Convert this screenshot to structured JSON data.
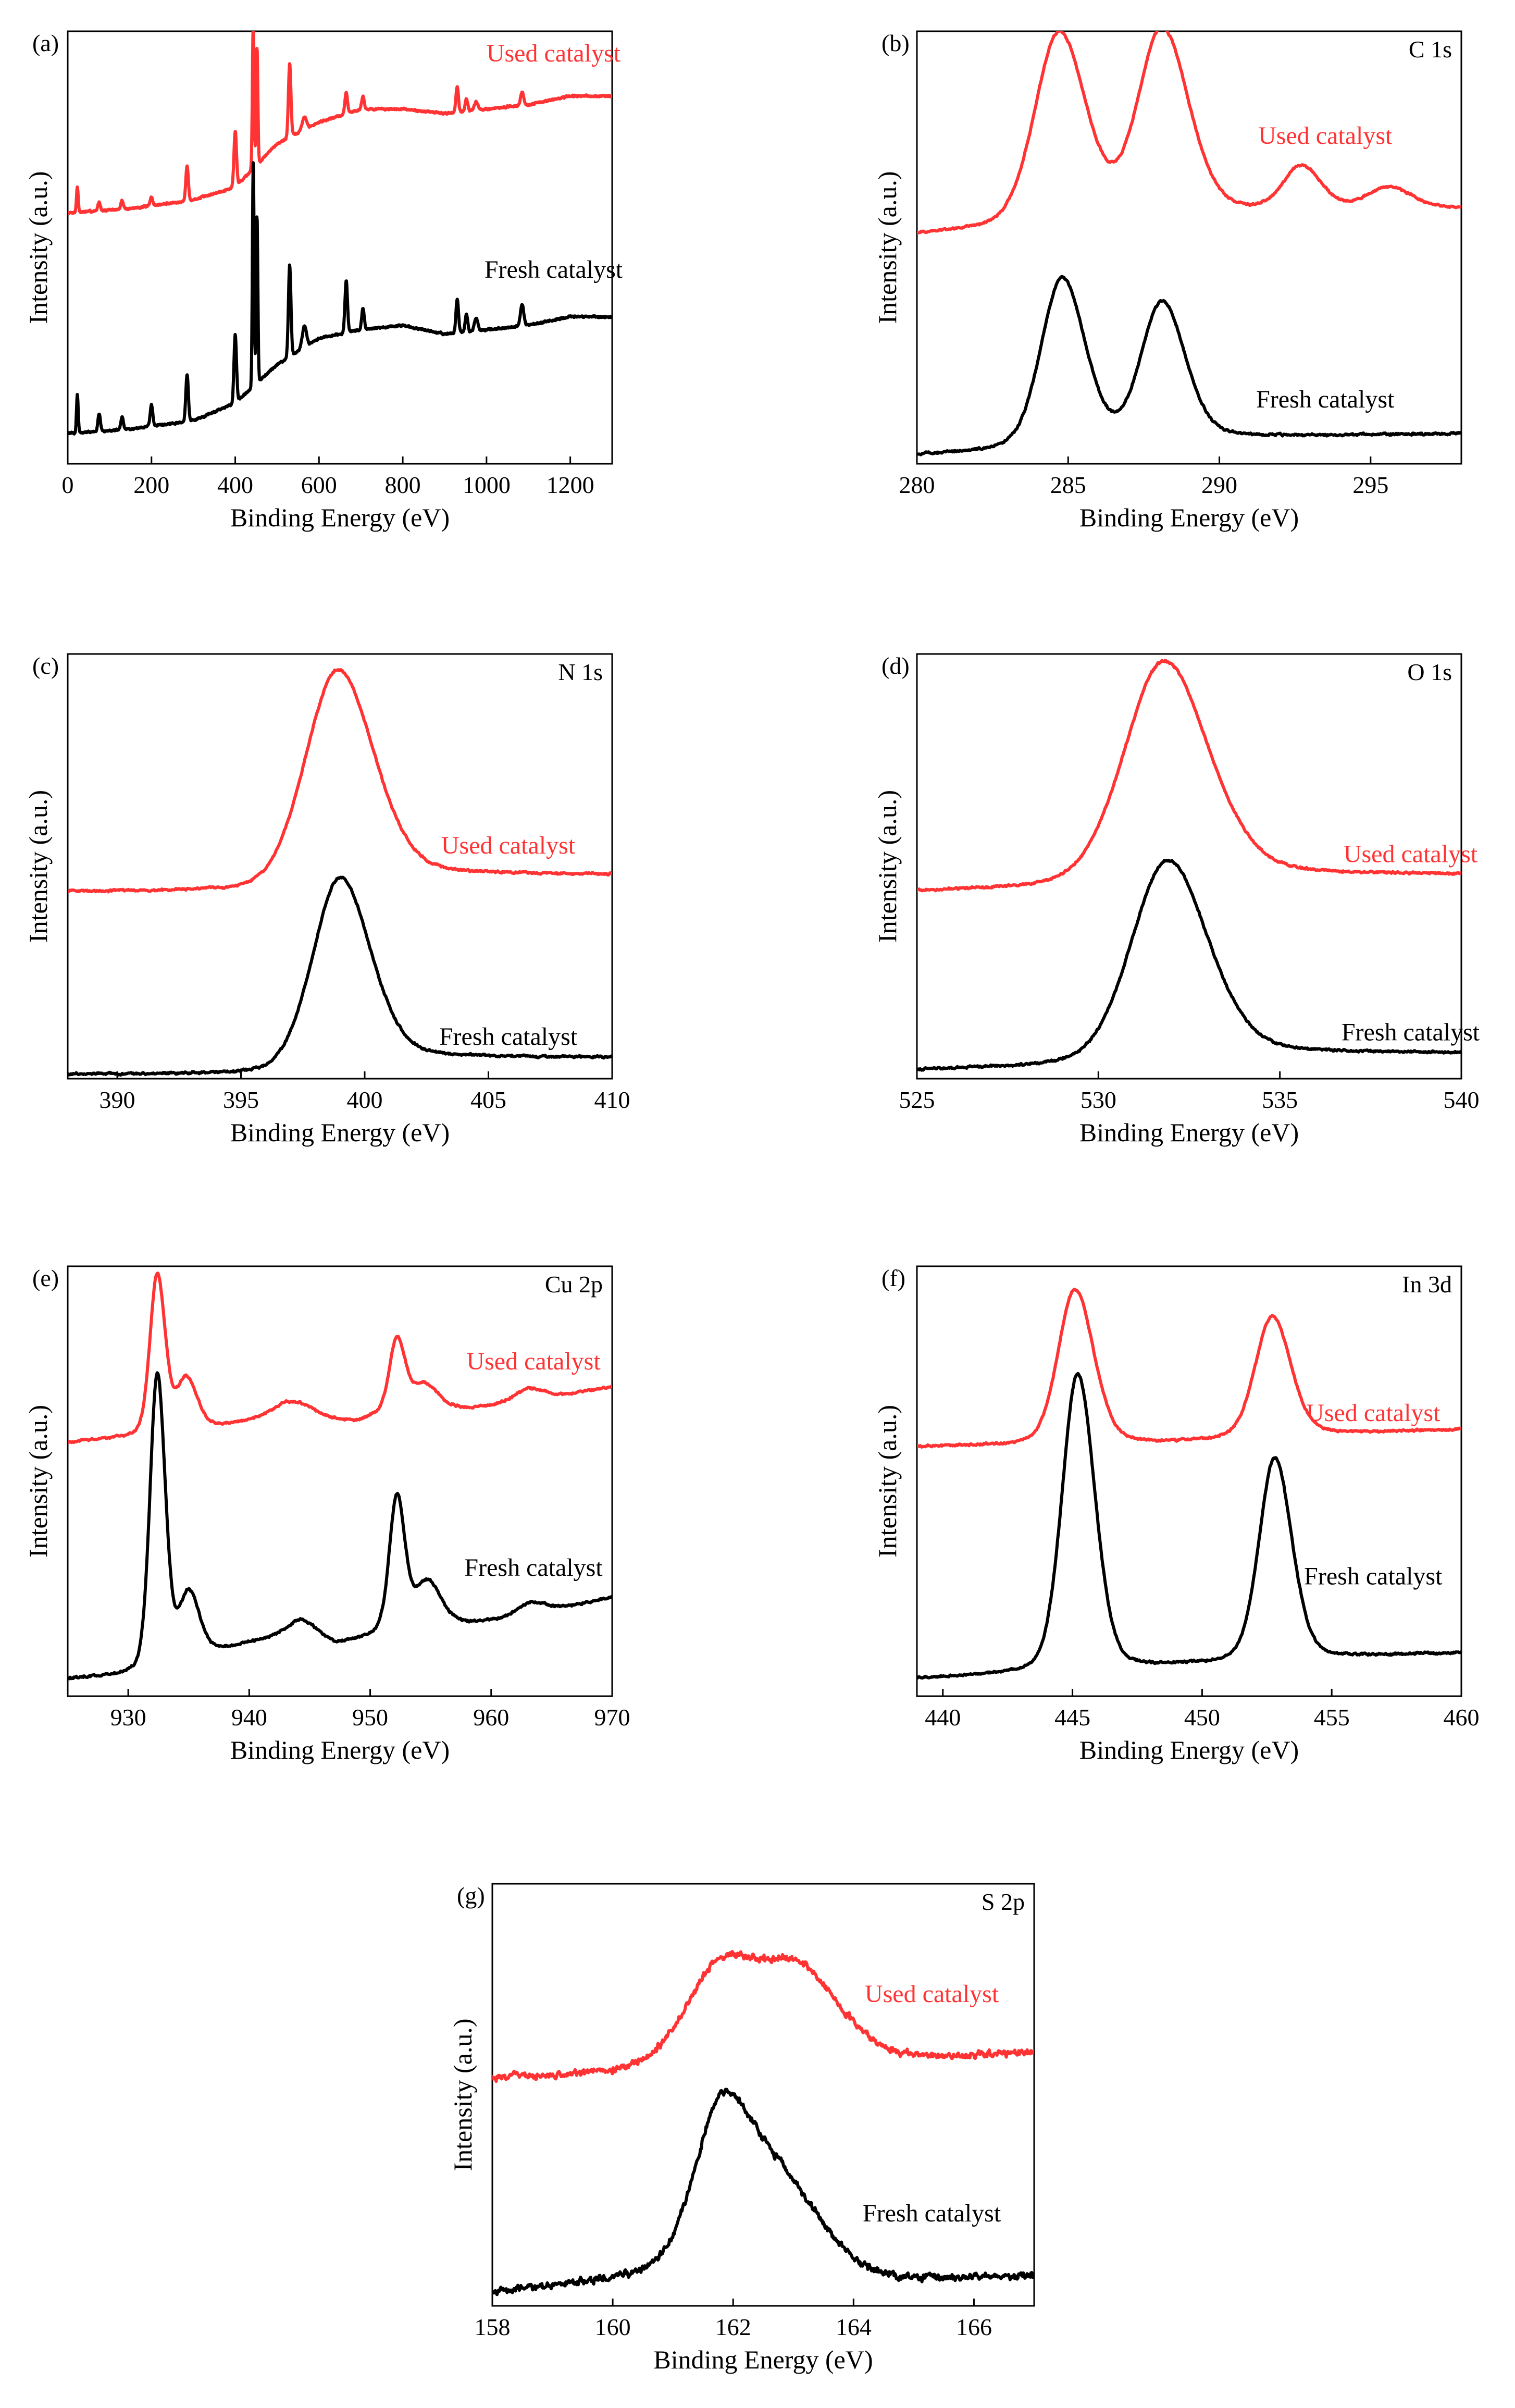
{
  "chart_data": [
    {
      "id": "a",
      "type": "line",
      "panel_label": "(a)",
      "element": "",
      "xlabel": "Binding Energy (eV)",
      "ylabel": "Intensity (a.u.)",
      "xlim": [
        0,
        1300
      ],
      "xticks": [
        0,
        200,
        400,
        600,
        800,
        1000,
        1200
      ],
      "ylim": [
        0,
        1
      ],
      "ymode": "survey",
      "series": [
        {
          "name": "Used catalyst",
          "color": "#ff3333",
          "label_at": [
            1160,
            0.93
          ],
          "baseline": [
            [
              0,
              0.58
            ],
            [
              150,
              0.59
            ],
            [
              300,
              0.61
            ],
            [
              400,
              0.64
            ],
            [
              500,
              0.74
            ],
            [
              600,
              0.79
            ],
            [
              700,
              0.82
            ],
            [
              800,
              0.82
            ],
            [
              900,
              0.81
            ],
            [
              1000,
              0.82
            ],
            [
              1100,
              0.83
            ],
            [
              1200,
              0.85
            ],
            [
              1300,
              0.85
            ]
          ],
          "peaks": [
            [
              23,
              0.06,
              2
            ],
            [
              75,
              0.02,
              3
            ],
            [
              130,
              0.02,
              3
            ],
            [
              200,
              0.02,
              3
            ],
            [
              285,
              0.08,
              3
            ],
            [
              400,
              0.13,
              3
            ],
            [
              443,
              0.34,
              2
            ],
            [
              452,
              0.27,
              2
            ],
            [
              530,
              0.17,
              3
            ],
            [
              565,
              0.03,
              5
            ],
            [
              665,
              0.05,
              3
            ],
            [
              705,
              0.03,
              3
            ],
            [
              930,
              0.06,
              3
            ],
            [
              952,
              0.03,
              3
            ],
            [
              975,
              0.02,
              4
            ],
            [
              1085,
              0.03,
              4
            ]
          ]
        },
        {
          "name": "Fresh catalyst",
          "color": "#000000",
          "label_at": [
            1160,
            0.43
          ],
          "baseline": [
            [
              0,
              0.07
            ],
            [
              150,
              0.08
            ],
            [
              300,
              0.1
            ],
            [
              400,
              0.14
            ],
            [
              500,
              0.23
            ],
            [
              600,
              0.29
            ],
            [
              700,
              0.31
            ],
            [
              800,
              0.32
            ],
            [
              900,
              0.3
            ],
            [
              1000,
              0.31
            ],
            [
              1100,
              0.32
            ],
            [
              1200,
              0.34
            ],
            [
              1300,
              0.34
            ]
          ],
          "peaks": [
            [
              23,
              0.09,
              2
            ],
            [
              75,
              0.04,
              3
            ],
            [
              130,
              0.03,
              3
            ],
            [
              200,
              0.05,
              3
            ],
            [
              285,
              0.11,
              3
            ],
            [
              400,
              0.16,
              3
            ],
            [
              443,
              0.52,
              2
            ],
            [
              452,
              0.39,
              2
            ],
            [
              530,
              0.21,
              3
            ],
            [
              565,
              0.05,
              5
            ],
            [
              665,
              0.12,
              3
            ],
            [
              705,
              0.05,
              3
            ],
            [
              930,
              0.08,
              3
            ],
            [
              952,
              0.04,
              3
            ],
            [
              975,
              0.03,
              4
            ],
            [
              1085,
              0.05,
              4
            ]
          ]
        }
      ]
    },
    {
      "id": "b",
      "type": "line",
      "panel_label": "(b)",
      "element": "C 1s",
      "xlabel": "Binding Energy (eV)",
      "ylabel": "Intensity (a.u.)",
      "xlim": [
        280,
        298
      ],
      "xticks": [
        280,
        285,
        290,
        295
      ],
      "ylim": [
        0,
        1
      ],
      "ymode": "peaks",
      "series": [
        {
          "name": "Used catalyst",
          "color": "#ff3333",
          "label_at": [
            293.5,
            0.74
          ],
          "baseline": [
            [
              280,
              0.53
            ],
            [
              286,
              0.56
            ],
            [
              290,
              0.58
            ],
            [
              298,
              0.59
            ]
          ],
          "peaks": [
            [
              284.7,
              0.44,
              0.8
            ],
            [
              288.1,
              0.43,
              0.8
            ],
            [
              292.7,
              0.1,
              0.6
            ],
            [
              295.6,
              0.05,
              0.7
            ]
          ]
        },
        {
          "name": "Fresh catalyst",
          "color": "#000000",
          "label_at": [
            293.5,
            0.13
          ],
          "baseline": [
            [
              280,
              0.02
            ],
            [
              286,
              0.04
            ],
            [
              290,
              0.06
            ],
            [
              298,
              0.07
            ]
          ],
          "peaks": [
            [
              284.8,
              0.39,
              0.7
            ],
            [
              288.1,
              0.32,
              0.7
            ]
          ]
        }
      ]
    },
    {
      "id": "c",
      "type": "line",
      "panel_label": "(c)",
      "element": "N 1s",
      "xlabel": "Binding Energy (eV)",
      "ylabel": "Intensity (a.u.)",
      "xlim": [
        388,
        410
      ],
      "xticks": [
        390,
        395,
        400,
        405,
        410
      ],
      "ylim": [
        0,
        1
      ],
      "ymode": "peaks",
      "series": [
        {
          "name": "Used catalyst",
          "color": "#ff3333",
          "label_at": [
            405.8,
            0.53
          ],
          "baseline": [
            [
              388,
              0.44
            ],
            [
              396,
              0.44
            ],
            [
              401,
              0.48
            ],
            [
              410,
              0.48
            ]
          ],
          "peaks": [
            [
              398.9,
              0.5,
              1.3
            ]
          ]
        },
        {
          "name": "Fresh catalyst",
          "color": "#000000",
          "label_at": [
            405.8,
            0.08
          ],
          "baseline": [
            [
              388,
              0.01
            ],
            [
              396,
              0.01
            ],
            [
              401,
              0.05
            ],
            [
              410,
              0.05
            ]
          ],
          "peaks": [
            [
              399.0,
              0.44,
              1.1
            ]
          ]
        }
      ]
    },
    {
      "id": "d",
      "type": "line",
      "panel_label": "(d)",
      "element": "O 1s",
      "xlabel": "Binding Energy (eV)",
      "ylabel": "Intensity (a.u.)",
      "xlim": [
        525,
        540
      ],
      "xticks": [
        525,
        530,
        535,
        540
      ],
      "ylim": [
        0,
        1
      ],
      "ymode": "peaks",
      "series": [
        {
          "name": "Used catalyst",
          "color": "#ff3333",
          "label_at": [
            538.6,
            0.51
          ],
          "baseline": [
            [
              525,
              0.44
            ],
            [
              530,
              0.45
            ],
            [
              534,
              0.48
            ],
            [
              540,
              0.48
            ]
          ],
          "peaks": [
            [
              531.8,
              0.52,
              1.1
            ]
          ]
        },
        {
          "name": "Fresh catalyst",
          "color": "#000000",
          "label_at": [
            538.6,
            0.09
          ],
          "baseline": [
            [
              525,
              0.02
            ],
            [
              530,
              0.03
            ],
            [
              534,
              0.06
            ],
            [
              540,
              0.06
            ]
          ],
          "peaks": [
            [
              531.9,
              0.47,
              1.0
            ]
          ]
        }
      ]
    },
    {
      "id": "e",
      "type": "line",
      "panel_label": "(e)",
      "element": "Cu 2p",
      "xlabel": "Binding Energy (eV)",
      "ylabel": "Intensity (a.u.)",
      "xlim": [
        925,
        970
      ],
      "xticks": [
        930,
        940,
        950,
        960,
        970
      ],
      "ylim": [
        0,
        1
      ],
      "ymode": "peaks",
      "series": [
        {
          "name": "Used catalyst",
          "color": "#ff3333",
          "label_at": [
            963.5,
            0.76
          ],
          "baseline": [
            [
              925,
              0.59
            ],
            [
              933,
              0.61
            ],
            [
              938,
              0.63
            ],
            [
              943,
              0.66
            ],
            [
              946,
              0.64
            ],
            [
              949,
              0.64
            ],
            [
              953,
              0.68
            ],
            [
              958,
              0.67
            ],
            [
              962,
              0.68
            ],
            [
              970,
              0.72
            ]
          ],
          "peaks": [
            [
              932.4,
              0.37,
              0.6
            ],
            [
              934.8,
              0.12,
              0.8
            ],
            [
              944.0,
              0.03,
              1.5
            ],
            [
              952.2,
              0.16,
              0.6
            ],
            [
              954.5,
              0.05,
              0.9
            ],
            [
              963.0,
              0.03,
              1.2
            ]
          ]
        },
        {
          "name": "Fresh catalyst",
          "color": "#000000",
          "label_at": [
            963.5,
            0.28
          ],
          "baseline": [
            [
              925,
              0.04
            ],
            [
              930,
              0.05
            ],
            [
              938,
              0.11
            ],
            [
              944,
              0.15
            ],
            [
              947,
              0.12
            ],
            [
              950,
              0.14
            ],
            [
              954,
              0.19
            ],
            [
              958,
              0.17
            ],
            [
              962,
              0.18
            ],
            [
              970,
              0.23
            ]
          ],
          "peaks": [
            [
              932.4,
              0.68,
              0.6
            ],
            [
              935.0,
              0.15,
              0.8
            ],
            [
              944.5,
              0.03,
              1.2
            ],
            [
              952.2,
              0.3,
              0.6
            ],
            [
              954.8,
              0.08,
              0.9
            ],
            [
              963.2,
              0.03,
              1.2
            ]
          ]
        }
      ]
    },
    {
      "id": "f",
      "type": "line",
      "panel_label": "(f)",
      "element": "In 3d",
      "xlabel": "Binding Energy (eV)",
      "ylabel": "Intensity (a.u.)",
      "xlim": [
        439,
        460
      ],
      "xticks": [
        440,
        445,
        450,
        455,
        460
      ],
      "ylim": [
        0,
        1
      ],
      "ymode": "peaks",
      "series": [
        {
          "name": "Used catalyst",
          "color": "#ff3333",
          "label_at": [
            456.6,
            0.64
          ],
          "baseline": [
            [
              439,
              0.58
            ],
            [
              449,
              0.59
            ],
            [
              455,
              0.61
            ],
            [
              460,
              0.62
            ]
          ],
          "peaks": [
            [
              445.1,
              0.36,
              0.65
            ],
            [
              452.7,
              0.28,
              0.65
            ]
          ]
        },
        {
          "name": "Fresh catalyst",
          "color": "#000000",
          "label_at": [
            456.6,
            0.26
          ],
          "baseline": [
            [
              439,
              0.04
            ],
            [
              449,
              0.07
            ],
            [
              455,
              0.09
            ],
            [
              460,
              0.1
            ]
          ],
          "peaks": [
            [
              445.2,
              0.69,
              0.6
            ],
            [
              452.8,
              0.47,
              0.6
            ]
          ]
        }
      ]
    },
    {
      "id": "g",
      "type": "line",
      "panel_label": "(g)",
      "element": "S 2p",
      "xlabel": "Binding Energy (eV)",
      "ylabel": "Intensity (a.u.)",
      "xlim": [
        158,
        167
      ],
      "xticks": [
        158,
        160,
        162,
        164,
        166
      ],
      "ylim": [
        0,
        1
      ],
      "ymode": "noisy",
      "series": [
        {
          "name": "Used catalyst",
          "color": "#ff3333",
          "label_at": [
            165.3,
            0.72
          ],
          "baseline": [
            [
              158,
              0.54
            ],
            [
              160,
              0.55
            ],
            [
              161,
              0.57
            ],
            [
              166,
              0.59
            ],
            [
              167,
              0.6
            ]
          ],
          "peaks": [
            [
              161.8,
              0.23,
              0.55
            ],
            [
              163.1,
              0.21,
              0.6
            ]
          ]
        },
        {
          "name": "Fresh catalyst",
          "color": "#000000",
          "label_at": [
            165.3,
            0.2
          ],
          "baseline": [
            [
              158,
              0.03
            ],
            [
              160,
              0.06
            ],
            [
              161,
              0.08
            ],
            [
              165,
              0.06
            ],
            [
              167,
              0.07
            ]
          ],
          "peaks": [
            [
              161.8,
              0.37,
              0.45
            ],
            [
              162.8,
              0.21,
              0.6
            ]
          ]
        }
      ]
    }
  ]
}
